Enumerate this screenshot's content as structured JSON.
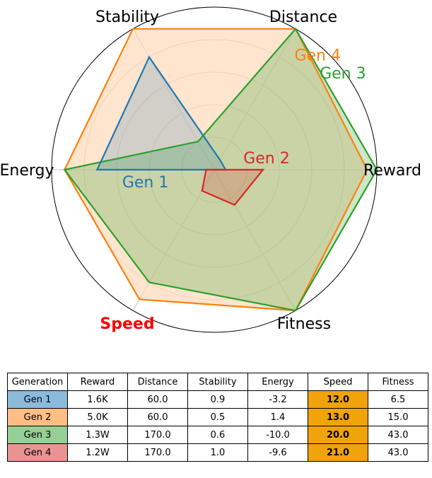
{
  "chart_data": {
    "type": "radar",
    "axes": [
      "Reward",
      "Distance",
      "Stability",
      "Energy",
      "Speed",
      "Fitness"
    ],
    "highlighted_axis": "Speed",
    "highlight_color": "#ff0000",
    "grid": true,
    "series": [
      {
        "name": "Gen 1",
        "color": "#1f77b4",
        "fill": "#1f77b4",
        "fill_opacity": 0.2,
        "values": [
          0.07,
          0.07,
          0.8,
          0.72,
          0.0,
          0.0
        ]
      },
      {
        "name": "Gen 2",
        "color": "#d62728",
        "fill": "#d62728",
        "fill_opacity": 0.2,
        "values": [
          0.3,
          0.0,
          0.0,
          0.05,
          0.15,
          0.25
        ]
      },
      {
        "name": "Gen 3",
        "color": "#2ca02c",
        "fill": "#2ca02c",
        "fill_opacity": 0.25,
        "values": [
          1.0,
          1.0,
          0.2,
          0.92,
          0.8,
          1.0
        ]
      },
      {
        "name": "Gen 4",
        "color": "#ff7f0e",
        "fill": "#ffdab9",
        "fill_opacity": 0.7,
        "values": [
          0.94,
          1.0,
          1.0,
          0.92,
          0.92,
          1.0
        ]
      }
    ],
    "series_label_positions": {
      "Gen 1": [
        0.43,
        190
      ],
      "Gen 2": [
        0.33,
        13
      ],
      "Gen 3": [
        0.99,
        37
      ],
      "Gen 4": [
        0.95,
        48
      ]
    }
  },
  "table": {
    "headers": [
      "Generation",
      "Reward",
      "Distance",
      "Stability",
      "Energy",
      "Speed",
      "Fitness"
    ],
    "rows": [
      {
        "gen": "Gen 1",
        "color": "#8bbadc",
        "cells": [
          "1.6K",
          "60.0",
          "0.9",
          "-3.2",
          "12.0",
          "6.5"
        ]
      },
      {
        "gen": "Gen 2",
        "color": "#ffbe86",
        "cells": [
          "5.0K",
          "60.0",
          "0.5",
          "1.4",
          "13.0",
          "15.0"
        ]
      },
      {
        "gen": "Gen 3",
        "color": "#95cf95",
        "cells": [
          "1.3W",
          "170.0",
          "0.6",
          "-10.0",
          "20.0",
          "43.0"
        ]
      },
      {
        "gen": "Gen 4",
        "color": "#ea9393",
        "cells": [
          "1.2W",
          "170.0",
          "1.0",
          "-9.6",
          "21.0",
          "43.0"
        ]
      }
    ],
    "highlight_column": 5,
    "highlight_color": "#f0a30a"
  }
}
